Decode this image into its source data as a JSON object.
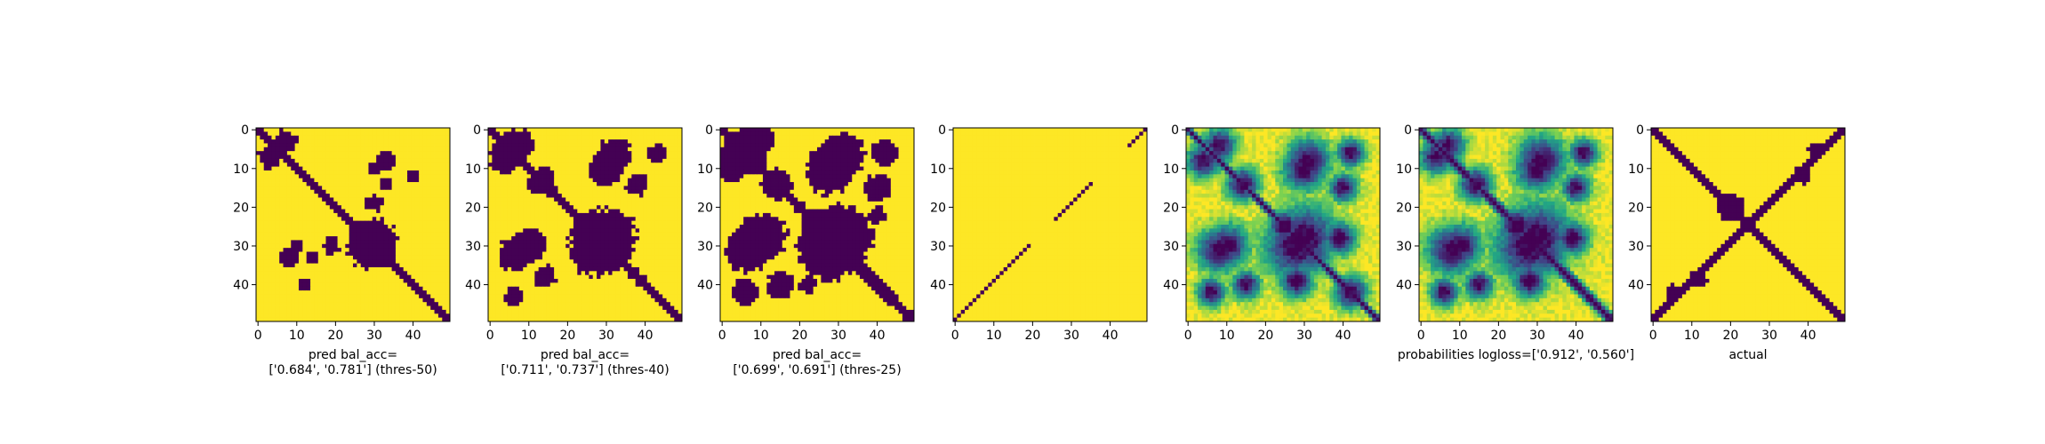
{
  "colors": {
    "viridis": [
      "#440154",
      "#414487",
      "#2a788e",
      "#22a884",
      "#7ad151",
      "#fde725"
    ]
  },
  "chart_data": [
    {
      "type": "heatmap",
      "render": "binary",
      "size": 50,
      "xticks": [
        0,
        10,
        20,
        30,
        40
      ],
      "yticks": [
        0,
        10,
        20,
        30,
        40
      ],
      "xlabel_lines": [
        "pred bal_acc=",
        "['0.684', '0.781'] (thres-50)"
      ],
      "main_diag_halfwidth": 1.8,
      "blobs": [
        [
          30,
          29,
          5.0
        ],
        [
          3,
          7,
          2.5
        ],
        [
          14,
          33,
          1.6
        ],
        [
          10,
          30,
          1.5
        ],
        [
          33,
          8,
          2.0
        ],
        [
          40,
          12,
          1.5
        ],
        [
          30,
          19,
          1.8
        ]
      ],
      "cross": null,
      "anti_diag_segments": []
    },
    {
      "type": "heatmap",
      "render": "binary",
      "size": 50,
      "xticks": [
        0,
        10,
        20,
        30,
        40
      ],
      "yticks": [
        0,
        10,
        20,
        30,
        40
      ],
      "xlabel_lines": [
        "pred bal_acc=",
        "['0.711', '0.737'] (thres-40)"
      ],
      "main_diag_halfwidth": 2.2,
      "blobs": [
        [
          30,
          28,
          6.5
        ],
        [
          4,
          7,
          3.5
        ],
        [
          10,
          30,
          4.0
        ],
        [
          14,
          12,
          2.5
        ],
        [
          32,
          7,
          4.0
        ],
        [
          38,
          14,
          2.5
        ],
        [
          25,
          26,
          3.0
        ],
        [
          6,
          43,
          2.0
        ]
      ],
      "cross": null,
      "anti_diag_segments": []
    },
    {
      "type": "heatmap",
      "render": "binary",
      "size": 50,
      "xticks": [
        0,
        10,
        20,
        30,
        40
      ],
      "yticks": [
        0,
        10,
        20,
        30,
        40
      ],
      "xlabel_lines": [
        "pred bal_acc=",
        "['0.699', '0.691'] (thres-25)"
      ],
      "main_diag_halfwidth": 2.5,
      "blobs": [
        [
          30,
          28,
          7.5
        ],
        [
          3,
          8,
          4.5
        ],
        [
          10,
          28,
          5.5
        ],
        [
          14,
          14,
          3.5
        ],
        [
          31,
          7,
          5.0
        ],
        [
          40,
          15,
          3.0
        ],
        [
          25,
          25,
          4.0
        ],
        [
          6,
          42,
          3.0
        ],
        [
          22,
          40,
          2.0
        ]
      ],
      "cross": null,
      "anti_diag_segments": []
    },
    {
      "type": "heatmap",
      "render": "binary",
      "size": 50,
      "xticks": [
        0,
        10,
        20,
        30,
        40
      ],
      "yticks": [
        0,
        10,
        20,
        30,
        40
      ],
      "xlabel_lines": [],
      "main_diag_halfwidth": 0,
      "blobs": [],
      "cross": null,
      "anti_diag_segments": [
        [
          0,
          15
        ],
        [
          15,
          20
        ],
        [
          26,
          36
        ],
        [
          45,
          50
        ]
      ]
    },
    {
      "type": "heatmap",
      "render": "continuous",
      "size": 50,
      "xticks": [
        0,
        10,
        20,
        30,
        40
      ],
      "yticks": [
        0,
        10,
        20,
        30,
        40
      ],
      "xlabel_lines": [],
      "main_diag_halfwidth": 1.5,
      "blobs": [
        [
          30,
          28,
          6.0
        ],
        [
          4,
          8,
          3.0
        ],
        [
          10,
          30,
          4.0
        ],
        [
          14,
          14,
          3.0
        ],
        [
          31,
          8,
          4.0
        ],
        [
          40,
          15,
          2.5
        ],
        [
          25,
          25,
          3.0
        ],
        [
          6,
          42,
          2.5
        ],
        [
          28,
          39,
          3.0
        ],
        [
          42,
          42,
          3.0
        ]
      ],
      "cross": null,
      "anti_diag_segments": []
    },
    {
      "type": "heatmap",
      "render": "continuous",
      "size": 50,
      "xticks": [
        0,
        10,
        20,
        30,
        40
      ],
      "yticks": [
        0,
        10,
        20,
        30,
        40
      ],
      "xlabel_lines": [
        "probabilities logloss=['0.912', '0.560']"
      ],
      "main_diag_halfwidth": 2.0,
      "blobs": [
        [
          30,
          28,
          6.5
        ],
        [
          4,
          7,
          3.0
        ],
        [
          10,
          30,
          4.0
        ],
        [
          14,
          14,
          3.0
        ],
        [
          31,
          8,
          4.5
        ],
        [
          40,
          15,
          2.5
        ],
        [
          25,
          25,
          3.5
        ],
        [
          6,
          42,
          2.5
        ],
        [
          28,
          39,
          3.0
        ]
      ],
      "cross": null,
      "anti_diag_segments": []
    },
    {
      "type": "heatmap",
      "render": "binary",
      "size": 50,
      "xticks": [
        0,
        10,
        20,
        30,
        40
      ],
      "yticks": [
        0,
        10,
        20,
        30,
        40
      ],
      "xlabel_lines": [
        "actual"
      ],
      "main_diag_halfwidth": 2.0,
      "blobs": [
        [
          20,
          20,
          3.0
        ],
        [
          5,
          42,
          1.5
        ],
        [
          38,
          12,
          1.8
        ]
      ],
      "cross": 2.0,
      "anti_diag_segments": []
    }
  ]
}
